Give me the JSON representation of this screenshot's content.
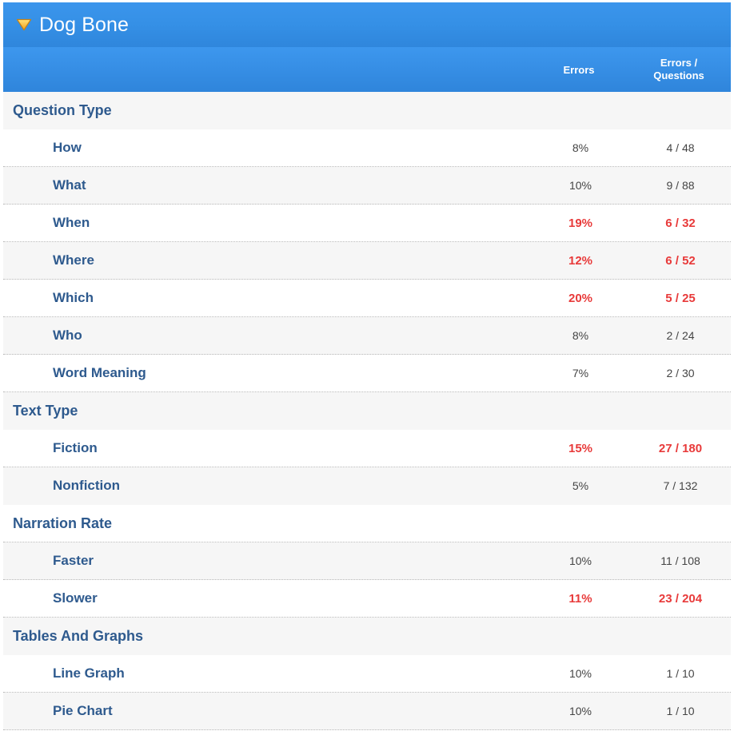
{
  "panel": {
    "title": "Dog Bone",
    "icon": "triangle-down-icon",
    "accent_color": "#3590e6",
    "highlight_color": "#e83a3a"
  },
  "columns": {
    "errors": "Errors",
    "ratio_line1": "Errors /",
    "ratio_line2": "Questions"
  },
  "sections": [
    {
      "label": "Question Type",
      "items": [
        {
          "label": "How",
          "errors": "8%",
          "ratio": "4 / 48",
          "highlight": false
        },
        {
          "label": "What",
          "errors": "10%",
          "ratio": "9 / 88",
          "highlight": false
        },
        {
          "label": "When",
          "errors": "19%",
          "ratio": "6 / 32",
          "highlight": true
        },
        {
          "label": "Where",
          "errors": "12%",
          "ratio": "6 / 52",
          "highlight": true
        },
        {
          "label": "Which",
          "errors": "20%",
          "ratio": "5 / 25",
          "highlight": true
        },
        {
          "label": "Who",
          "errors": "8%",
          "ratio": "2 / 24",
          "highlight": false
        },
        {
          "label": "Word Meaning",
          "errors": "7%",
          "ratio": "2 / 30",
          "highlight": false
        }
      ]
    },
    {
      "label": "Text Type",
      "items": [
        {
          "label": "Fiction",
          "errors": "15%",
          "ratio": "27 / 180",
          "highlight": true
        },
        {
          "label": "Nonfiction",
          "errors": "5%",
          "ratio": "7 / 132",
          "highlight": false
        }
      ]
    },
    {
      "label": "Narration Rate",
      "items": [
        {
          "label": "Faster",
          "errors": "10%",
          "ratio": "11 / 108",
          "highlight": false
        },
        {
          "label": "Slower",
          "errors": "11%",
          "ratio": "23 / 204",
          "highlight": true
        }
      ]
    },
    {
      "label": "Tables And Graphs",
      "items": [
        {
          "label": "Line Graph",
          "errors": "10%",
          "ratio": "1 / 10",
          "highlight": false
        },
        {
          "label": "Pie Chart",
          "errors": "10%",
          "ratio": "1 / 10",
          "highlight": false
        }
      ]
    }
  ]
}
